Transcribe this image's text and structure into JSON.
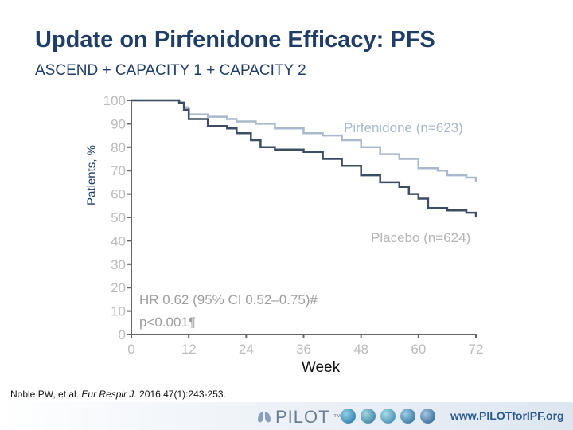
{
  "slide": {
    "title": "Update on Pirfenidone Efficacy: PFS",
    "subtitle": "ASCEND + CAPACITY 1 + CAPACITY 2"
  },
  "citation": {
    "authors": "Noble PW, et al.",
    "journal": "Eur Respir J.",
    "details": "2016;47(1):243-253."
  },
  "footer": {
    "logo_text": "PILOT",
    "trademark": "™",
    "website": "www.PILOTforIPF.org",
    "icons": [
      "lung-icon",
      "globe-icon",
      "globe-icon",
      "globe-icon",
      "globe-icon",
      "globe-icon"
    ]
  },
  "chart_data": {
    "type": "line",
    "xlabel": "Week",
    "ylabel": "Patients, %",
    "xlim": [
      0,
      72
    ],
    "ylim": [
      0,
      100
    ],
    "x_ticks": [
      0,
      12,
      24,
      36,
      48,
      60,
      72
    ],
    "y_ticks": [
      0,
      10,
      20,
      30,
      40,
      50,
      60,
      70,
      80,
      90,
      100
    ],
    "grid": false,
    "series": [
      {
        "name": "Pirfenidone (n=623)",
        "color": "#a9b8cc",
        "points": [
          [
            0,
            100
          ],
          [
            6,
            100
          ],
          [
            10,
            99
          ],
          [
            11,
            97
          ],
          [
            12,
            94
          ],
          [
            16,
            93
          ],
          [
            20,
            92
          ],
          [
            22,
            91
          ],
          [
            26,
            90
          ],
          [
            30,
            88
          ],
          [
            36,
            86
          ],
          [
            40,
            85
          ],
          [
            44,
            83
          ],
          [
            48,
            80
          ],
          [
            52,
            77
          ],
          [
            56,
            75
          ],
          [
            60,
            71
          ],
          [
            64,
            70
          ],
          [
            66,
            68
          ],
          [
            70,
            67
          ],
          [
            72,
            65
          ]
        ]
      },
      {
        "name": "Placebo (n=624)",
        "color": "#3c4d63",
        "points": [
          [
            0,
            100
          ],
          [
            6,
            100
          ],
          [
            10,
            99
          ],
          [
            11,
            96
          ],
          [
            12,
            92
          ],
          [
            16,
            89
          ],
          [
            20,
            88
          ],
          [
            22,
            86
          ],
          [
            25,
            83
          ],
          [
            27,
            80
          ],
          [
            30,
            79
          ],
          [
            36,
            78
          ],
          [
            40,
            75
          ],
          [
            44,
            72
          ],
          [
            48,
            68
          ],
          [
            52,
            65
          ],
          [
            56,
            63
          ],
          [
            58,
            60
          ],
          [
            60,
            58
          ],
          [
            62,
            54
          ],
          [
            66,
            53
          ],
          [
            70,
            52
          ],
          [
            72,
            50
          ]
        ]
      }
    ],
    "annotations": [
      "HR 0.62 (95% CI 0.52–0.75)#",
      "p<0.001¶"
    ]
  }
}
